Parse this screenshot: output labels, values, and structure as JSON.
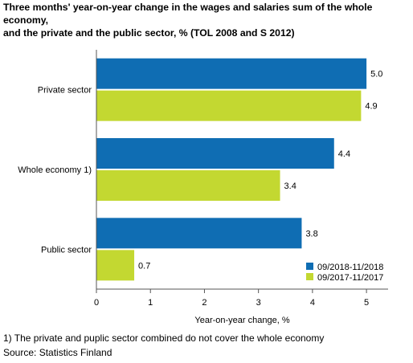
{
  "title_line1": "Three months' year-on-year change in the wages and salaries sum of the whole economy,",
  "title_line2": "and the private and the public sector, % (TOL 2008 and S 2012)",
  "footnote": "1) The private and puplic sector combined do not cover the whole economy",
  "source": "Source: Statistics Finland",
  "colors": {
    "series1": "#0f6db3",
    "series2": "#c3d831",
    "axis": "#555555",
    "grid": "#dddddd"
  },
  "chart_data": {
    "type": "bar",
    "orientation": "horizontal",
    "categories": [
      "Private sector",
      "Whole economy 1)",
      "Public sector"
    ],
    "series": [
      {
        "name": "09/2018-11/2018",
        "values": [
          5.0,
          4.4,
          3.8
        ],
        "labels": [
          "5.0",
          "4.4",
          "3.8"
        ]
      },
      {
        "name": "09/2017-11/2017",
        "values": [
          4.9,
          3.4,
          0.7
        ],
        "labels": [
          "4.9",
          "3.4",
          "0.7"
        ]
      }
    ],
    "xlabel": "Year-on-year change, %",
    "ylabel": "",
    "xlim": [
      0,
      5.4
    ],
    "xticks": [
      0,
      1,
      2,
      3,
      4,
      5
    ],
    "legend": "bottom-right",
    "grid": false
  }
}
